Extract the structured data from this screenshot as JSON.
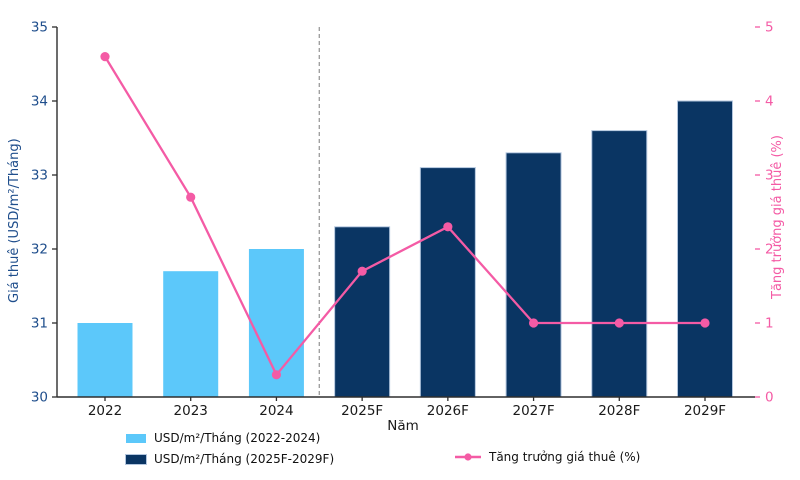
{
  "chart_data": {
    "type": "bar+line",
    "categories": [
      "2022",
      "2023",
      "2024",
      "2025F",
      "2026F",
      "2027F",
      "2028F",
      "2029F"
    ],
    "series": [
      {
        "name": "USD/m²/Tháng (2022-2024)",
        "type": "bar",
        "axis": "left",
        "color": "#5cc8fa",
        "values": [
          31.0,
          31.7,
          32.0,
          null,
          null,
          null,
          null,
          null
        ]
      },
      {
        "name": "USD/m²/Tháng (2025F-2029F)",
        "type": "bar",
        "axis": "left",
        "color": "#0a3563",
        "edge": "#b3c6de",
        "values": [
          null,
          null,
          null,
          32.3,
          33.1,
          33.3,
          33.6,
          34.0
        ]
      },
      {
        "name": "Tăng trưởng giá thuê (%)",
        "type": "line",
        "axis": "right",
        "color": "#f45ba5",
        "values": [
          4.6,
          2.7,
          0.3,
          1.7,
          2.3,
          1.0,
          1.0,
          1.0
        ]
      }
    ],
    "left_axis": {
      "label": "Giá thuê (USD/m²/Tháng)",
      "min": 30,
      "max": 35,
      "ticks": [
        30,
        31,
        32,
        33,
        34,
        35
      ],
      "color": "#1f4e8c"
    },
    "right_axis": {
      "label": "Tăng trưởng giá thuê (%)",
      "min": 0,
      "max": 5,
      "ticks": [
        0,
        1,
        2,
        3,
        4,
        5
      ],
      "color": "#f45ba5"
    },
    "x_axis": {
      "label": "Năm",
      "color": "#1a1a1a"
    },
    "separator_after_index": 2,
    "separator_color": "#9a9a9a",
    "spine_color": "#2e2e2e",
    "legend_position": "bottom",
    "grid": false
  }
}
